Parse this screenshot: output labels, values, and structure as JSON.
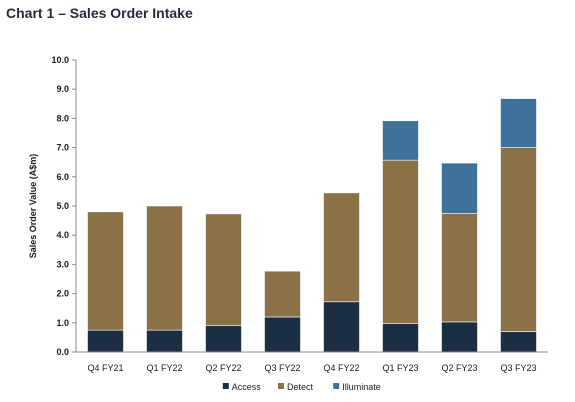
{
  "chart_data": {
    "type": "bar",
    "stacked": true,
    "title": "Chart 1 – Sales Order Intake",
    "xlabel": "",
    "ylabel": "Sales Order Value (A$m)",
    "ylim": [
      0,
      10
    ],
    "yticks": [
      "0.0",
      "1.0",
      "2.0",
      "3.0",
      "4.0",
      "5.0",
      "6.0",
      "7.0",
      "8.0",
      "9.0",
      "10.0"
    ],
    "grid": false,
    "legend_position": "bottom",
    "categories": [
      "Q4 FY21",
      "Q1 FY22",
      "Q2 FY22",
      "Q3 FY22",
      "Q4 FY22",
      "Q1 FY23",
      "Q2 FY23",
      "Q3 FY23"
    ],
    "series": [
      {
        "name": "Access",
        "color": "#1c2e44",
        "values": [
          0.75,
          0.75,
          0.9,
          1.2,
          1.72,
          0.97,
          1.03,
          0.7
        ]
      },
      {
        "name": "Detect",
        "color": "#8b7148",
        "values": [
          4.05,
          4.25,
          3.83,
          1.57,
          3.73,
          5.6,
          3.72,
          6.3
        ]
      },
      {
        "name": "Illuminate",
        "color": "#3f729b",
        "values": [
          0,
          0,
          0,
          0,
          0,
          1.35,
          1.72,
          1.68
        ]
      }
    ]
  }
}
